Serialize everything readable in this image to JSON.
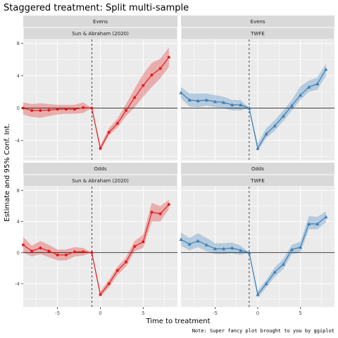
{
  "title": "Staggered treatment: Split multi-sample",
  "xlabel": "Time to treatment",
  "ylabel": "Estimate and 95% Conf. Int.",
  "caption": "Note: Super fancy plot brought to you by ggiplot",
  "colors": {
    "sunab": "#e31a1c",
    "twfe": "#377eb8",
    "panel_bg": "#ebebeb",
    "strip_bg": "#d9d9d9",
    "grid": "#ffffff"
  },
  "chart_data": [
    {
      "type": "line",
      "strip_top": "Evens",
      "strip_bottom": "Sun & Abraham (2020)",
      "series_color": "sunab",
      "marker": "circle",
      "xlim": [
        -9,
        9
      ],
      "ylim": [
        -6.5,
        8.5
      ],
      "x_ticks": [
        -5,
        0,
        5
      ],
      "y_ticks": [
        -4,
        0,
        4,
        8
      ],
      "reference_x": -1,
      "reference_y": 0,
      "x": [
        -9,
        -8,
        -7,
        -6,
        -5,
        -4,
        -3,
        -2,
        -1,
        0,
        1,
        2,
        3,
        4,
        5,
        6,
        7,
        8
      ],
      "y": [
        0.0,
        -0.3,
        -0.3,
        -0.25,
        -0.15,
        -0.15,
        -0.15,
        0.05,
        0.0,
        -5.0,
        -3.0,
        -1.9,
        -0.3,
        1.3,
        2.8,
        4.1,
        4.9,
        6.3
      ],
      "ci_low": [
        -0.8,
        -1.1,
        -1.2,
        -1.0,
        -0.8,
        -0.7,
        -0.7,
        -0.6,
        0.0,
        -5.3,
        -3.4,
        -2.4,
        -1.0,
        0.1,
        1.4,
        2.6,
        3.7,
        5.1
      ],
      "ci_high": [
        0.7,
        0.5,
        0.6,
        0.5,
        0.4,
        0.4,
        0.4,
        0.7,
        0.0,
        -4.6,
        -2.5,
        -1.3,
        0.5,
        2.4,
        4.2,
        5.6,
        6.1,
        7.5
      ]
    },
    {
      "type": "line",
      "strip_top": "Evens",
      "strip_bottom": "TWFE",
      "series_color": "twfe",
      "marker": "triangle",
      "xlim": [
        -9,
        9
      ],
      "ylim": [
        -6.5,
        8.5
      ],
      "x_ticks": [
        -5,
        0,
        5
      ],
      "y_ticks": [
        -4,
        0,
        4,
        8
      ],
      "reference_x": -1,
      "reference_y": 0,
      "x": [
        -9,
        -8,
        -7,
        -6,
        -5,
        -4,
        -3,
        -2,
        -1,
        0,
        1,
        2,
        3,
        4,
        5,
        6,
        7,
        8
      ],
      "y": [
        1.9,
        1.0,
        0.9,
        1.0,
        0.8,
        0.7,
        0.4,
        0.4,
        0.0,
        -5.0,
        -3.2,
        -2.2,
        -1.0,
        0.3,
        1.6,
        2.6,
        3.0,
        4.8
      ],
      "ci_low": [
        1.2,
        0.2,
        0.1,
        0.3,
        0.1,
        0.0,
        -0.3,
        -0.3,
        0.0,
        -5.3,
        -3.7,
        -2.8,
        -1.6,
        -0.3,
        1.0,
        2.0,
        2.3,
        4.0
      ],
      "ci_high": [
        2.6,
        1.8,
        1.8,
        1.8,
        1.6,
        1.4,
        1.0,
        1.0,
        0.0,
        -4.4,
        -2.5,
        -1.5,
        -0.3,
        1.0,
        2.7,
        3.4,
        3.8,
        5.5
      ]
    },
    {
      "type": "line",
      "strip_top": "Odds",
      "strip_bottom": "Sun & Abraham (2020)",
      "series_color": "sunab",
      "marker": "circle",
      "xlim": [
        -9,
        9
      ],
      "ylim": [
        -7,
        8.5
      ],
      "x_ticks": [
        -5,
        0,
        5
      ],
      "y_ticks": [
        -4,
        0,
        4,
        8
      ],
      "reference_x": -1,
      "reference_y": 0,
      "x": [
        -9,
        -8,
        -7,
        -6,
        -5,
        -4,
        -3,
        -2,
        -1,
        0,
        1,
        2,
        3,
        4,
        5,
        6,
        7,
        8
      ],
      "y": [
        1.0,
        0.2,
        0.6,
        0.2,
        -0.3,
        -0.3,
        0.1,
        0.1,
        0.0,
        -5.4,
        -4.0,
        -2.3,
        -1.2,
        0.8,
        1.4,
        5.2,
        5.0,
        6.2
      ],
      "ci_low": [
        0.0,
        -0.5,
        -0.2,
        -0.6,
        -1.0,
        -1.0,
        -0.5,
        -0.4,
        0.0,
        -5.7,
        -4.5,
        -2.9,
        -1.8,
        0.2,
        0.6,
        4.0,
        4.0,
        5.6
      ],
      "ci_high": [
        2.0,
        0.9,
        1.5,
        1.0,
        0.4,
        0.4,
        0.7,
        0.6,
        0.0,
        -5.0,
        -3.5,
        -1.8,
        -0.6,
        1.5,
        2.3,
        6.4,
        6.0,
        6.8
      ]
    },
    {
      "type": "line",
      "strip_top": "Odds",
      "strip_bottom": "TWFE",
      "series_color": "twfe",
      "marker": "triangle",
      "xlim": [
        -9,
        9
      ],
      "ylim": [
        -7,
        8.5
      ],
      "x_ticks": [
        -5,
        0,
        5
      ],
      "y_ticks": [
        -4,
        0,
        4,
        8
      ],
      "reference_x": -1,
      "reference_y": 0,
      "x": [
        -9,
        -8,
        -7,
        -6,
        -5,
        -4,
        -3,
        -2,
        -1,
        0,
        1,
        2,
        3,
        4,
        5,
        6,
        7,
        8
      ],
      "y": [
        1.7,
        1.1,
        1.5,
        1.0,
        0.5,
        0.5,
        0.6,
        0.3,
        0.0,
        -5.4,
        -4.0,
        -2.5,
        -1.5,
        0.4,
        0.7,
        3.7,
        3.7,
        4.6
      ],
      "ci_low": [
        0.9,
        0.3,
        0.7,
        0.2,
        -0.2,
        -0.2,
        -0.1,
        -0.3,
        0.0,
        -5.8,
        -4.5,
        -3.1,
        -2.1,
        -0.2,
        0.0,
        3.0,
        3.0,
        3.9
      ],
      "ci_high": [
        2.6,
        1.9,
        2.5,
        1.9,
        1.2,
        1.2,
        1.3,
        0.9,
        0.0,
        -4.9,
        -3.5,
        -1.9,
        -0.8,
        1.0,
        1.4,
        4.7,
        4.6,
        5.3
      ]
    }
  ]
}
